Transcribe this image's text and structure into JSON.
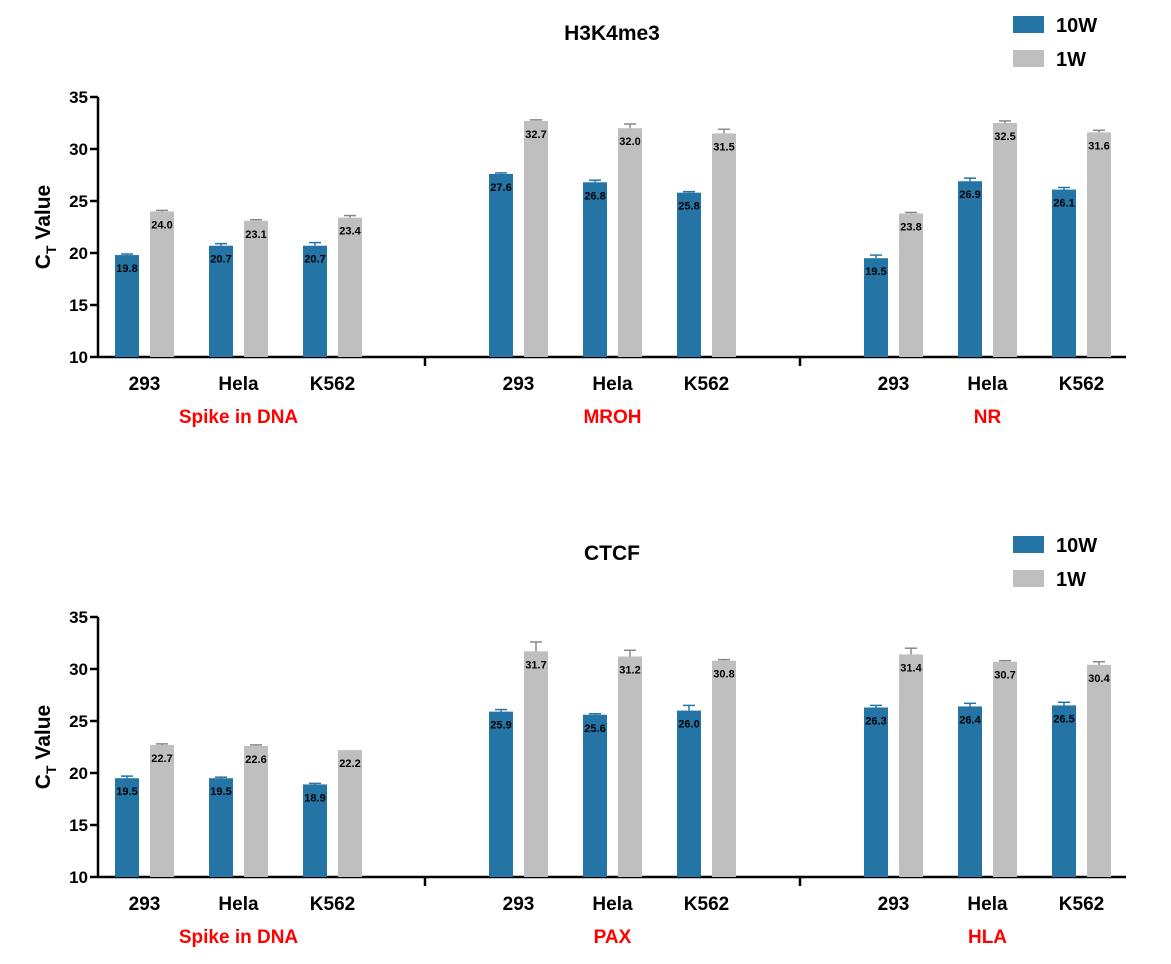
{
  "colors": {
    "10W": "#2474A6",
    "1W": "#BFBFBF",
    "group_label": "#FF0000",
    "axis": "#000000",
    "error_bar": "#888888"
  },
  "chart_data": [
    {
      "type": "bar",
      "title": "H3K4me3",
      "ylabel": "C",
      "ylabel_sub": "T",
      "ylabel_rest": " Value",
      "ylim": [
        10,
        35
      ],
      "yticks": [
        10,
        15,
        20,
        25,
        30,
        35
      ],
      "legend_position": "top-right",
      "groups": [
        {
          "label": "Spike in DNA",
          "categories": [
            "293",
            "Hela",
            "K562"
          ]
        },
        {
          "label": "MROH",
          "categories": [
            "293",
            "Hela",
            "K562"
          ]
        },
        {
          "label": "NR",
          "categories": [
            "293",
            "Hela",
            "K562"
          ]
        }
      ],
      "series": [
        {
          "name": "10W",
          "values": [
            19.8,
            20.7,
            20.7,
            27.6,
            26.8,
            25.8,
            19.5,
            26.9,
            26.1
          ],
          "errors": [
            0.1,
            0.2,
            0.3,
            0.1,
            0.2,
            0.1,
            0.3,
            0.3,
            0.2
          ]
        },
        {
          "name": "1W",
          "values": [
            24.0,
            23.1,
            23.4,
            32.7,
            32.0,
            31.5,
            23.8,
            32.5,
            31.6
          ],
          "errors": [
            0.1,
            0.1,
            0.2,
            0.1,
            0.4,
            0.4,
            0.1,
            0.2,
            0.2
          ]
        }
      ],
      "data_labels": [
        [
          "19.8",
          "20.7",
          "20.7",
          "27.6",
          "26.8",
          "25.8",
          "19.5",
          "26.9",
          "26.1"
        ],
        [
          "24.0",
          "23.1",
          "23.4",
          "32.7",
          "32.0",
          "31.5",
          "23.8",
          "32.5",
          "31.6"
        ]
      ]
    },
    {
      "type": "bar",
      "title": "CTCF",
      "ylabel": "C",
      "ylabel_sub": "T",
      "ylabel_rest": " Value",
      "ylim": [
        10,
        35
      ],
      "yticks": [
        10,
        15,
        20,
        25,
        30,
        35
      ],
      "legend_position": "top-right",
      "groups": [
        {
          "label": "Spike in DNA",
          "categories": [
            "293",
            "Hela",
            "K562"
          ]
        },
        {
          "label": "PAX",
          "categories": [
            "293",
            "Hela",
            "K562"
          ]
        },
        {
          "label": "HLA",
          "categories": [
            "293",
            "Hela",
            "K562"
          ]
        }
      ],
      "series": [
        {
          "name": "10W",
          "values": [
            19.5,
            19.5,
            18.9,
            25.9,
            25.6,
            26.0,
            26.3,
            26.4,
            26.5
          ],
          "errors": [
            0.2,
            0.1,
            0.1,
            0.2,
            0.1,
            0.5,
            0.2,
            0.3,
            0.3
          ]
        },
        {
          "name": "1W",
          "values": [
            22.7,
            22.6,
            22.2,
            31.7,
            31.2,
            30.8,
            31.4,
            30.7,
            30.4
          ],
          "errors": [
            0.1,
            0.1,
            0.0,
            0.9,
            0.6,
            0.1,
            0.6,
            0.1,
            0.3
          ]
        }
      ],
      "data_labels": [
        [
          "19.5",
          "19.5",
          "18.9",
          "25.9",
          "25.6",
          "26.0",
          "26.3",
          "26.4",
          "26.5"
        ],
        [
          "22.7",
          "22.6",
          "22.2",
          "31.7",
          "31.2",
          "30.8",
          "31.4",
          "30.7",
          "30.4"
        ]
      ]
    }
  ]
}
